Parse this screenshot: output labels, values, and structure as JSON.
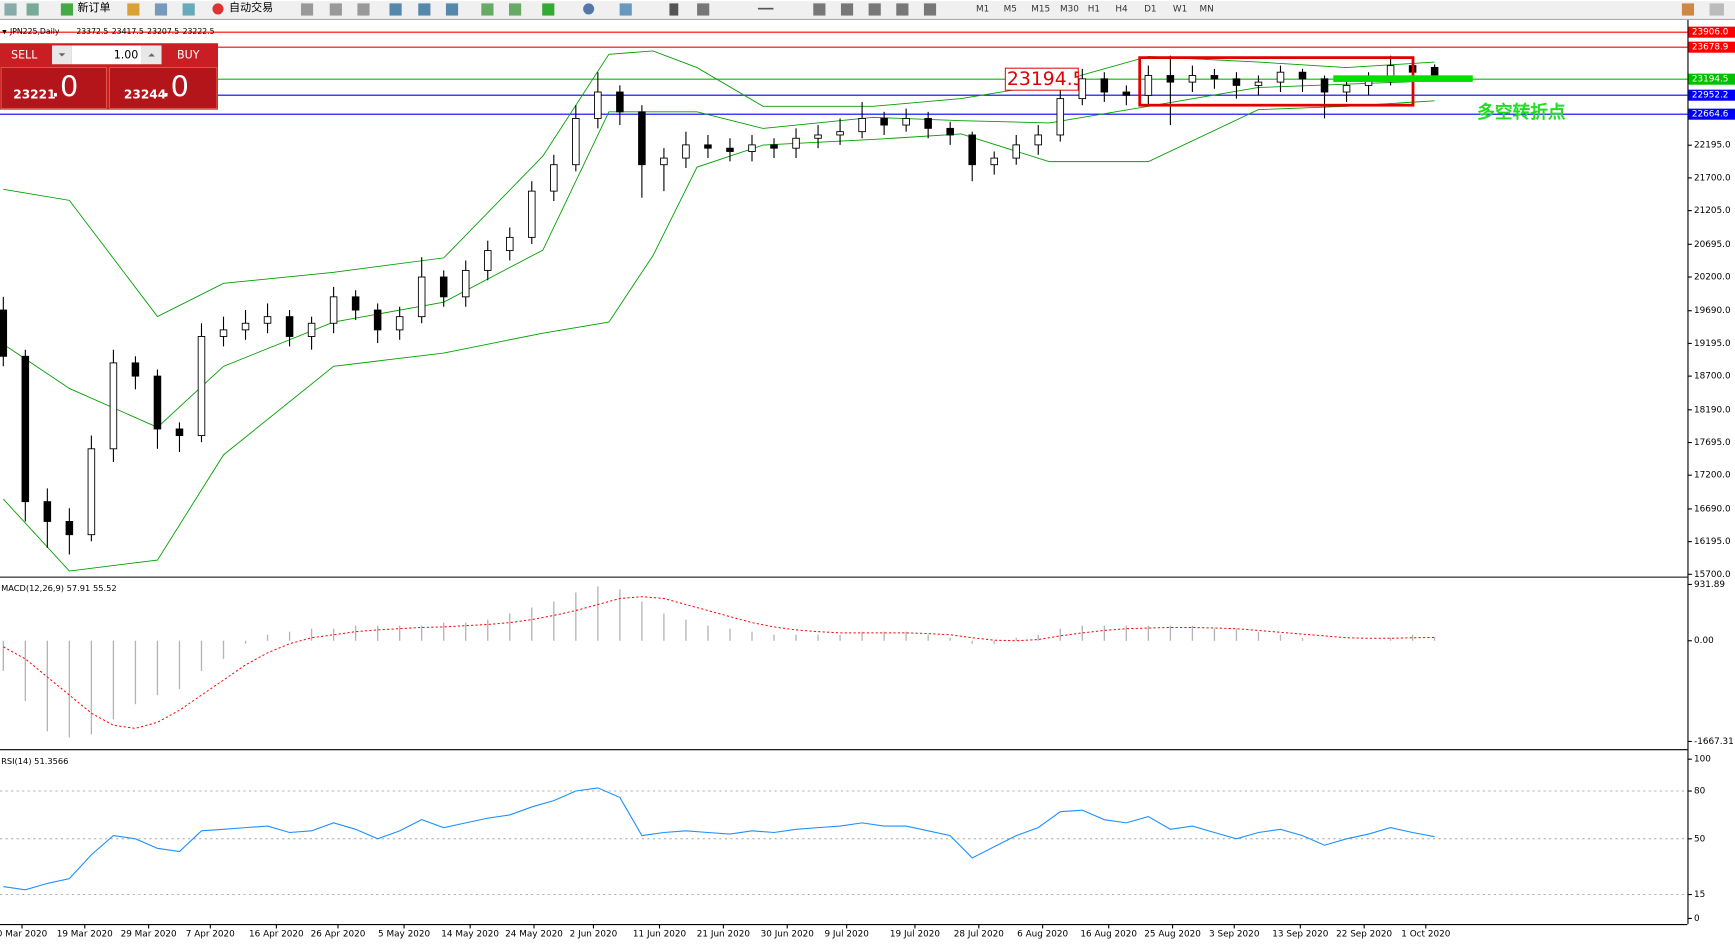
{
  "toolbar": {
    "buttons": [
      "新订单",
      "自动交易"
    ],
    "timeframes": [
      "M1",
      "M5",
      "M15",
      "M30",
      "H1",
      "H4",
      "D1",
      "W1",
      "MN"
    ]
  },
  "trade_panel": {
    "sell": "SELL",
    "buy": "BUY",
    "volume": "1.00",
    "sell_price": "23221",
    "sell_pips": ".0",
    "buy_price": "23244",
    "buy_pips": ".0"
  },
  "annotations": {
    "price_box": "23194.5",
    "note": "多空转折点"
  },
  "chart_data": [
    {
      "type": "candlestick",
      "title": "JPN225,Daily",
      "xlim": [
        -0.15,
        76.48
      ],
      "ylim": [
        15666,
        24040
      ],
      "open": [
        19700,
        19000,
        16800,
        16500,
        16300,
        17600,
        18900,
        18700,
        17900,
        17800,
        19300,
        19400,
        19500,
        19600,
        19300,
        19500,
        19900,
        19700,
        19400,
        19600,
        20200,
        19900,
        20300,
        20600,
        20800,
        21500,
        21900,
        22600,
        23000,
        22700,
        21900,
        22000,
        22200,
        22150,
        22100,
        22200,
        22150,
        22300,
        22350,
        22400,
        22600,
        22500,
        22600,
        22450,
        22350,
        21900,
        22000,
        22200,
        22350,
        22900,
        23200,
        23000,
        22950,
        23250,
        23150,
        23250,
        23200,
        23100,
        23150,
        23300,
        23200,
        23000,
        23100,
        23200,
        23400,
        23372.5
      ],
      "high": [
        19900,
        19100,
        17000,
        16700,
        17800,
        19100,
        19000,
        18800,
        18000,
        19500,
        19600,
        19700,
        19800,
        19700,
        19600,
        20050,
        20000,
        19800,
        19750,
        20500,
        20300,
        20450,
        20750,
        20950,
        21650,
        22050,
        22800,
        23300,
        23100,
        22800,
        22150,
        22400,
        22350,
        22300,
        22350,
        22300,
        22450,
        22500,
        22600,
        22850,
        22700,
        22750,
        22700,
        22550,
        22400,
        22100,
        22350,
        22500,
        23050,
        23350,
        23300,
        23100,
        23400,
        23550,
        23400,
        23350,
        23300,
        23250,
        23400,
        23350,
        23250,
        23200,
        23300,
        23550,
        23500,
        23417.5
      ],
      "low": [
        18850,
        16500,
        16100,
        16000,
        16200,
        17400,
        18500,
        17600,
        17550,
        17700,
        19150,
        19250,
        19350,
        19150,
        19100,
        19350,
        19550,
        19200,
        19250,
        19500,
        19750,
        19750,
        20150,
        20450,
        20700,
        21350,
        21800,
        22450,
        22500,
        21400,
        21500,
        21850,
        22000,
        21950,
        21950,
        22000,
        22000,
        22150,
        22200,
        22300,
        22350,
        22400,
        22300,
        22200,
        21650,
        21750,
        21900,
        22050,
        22250,
        22800,
        22850,
        22800,
        22800,
        22500,
        23000,
        23050,
        22900,
        22950,
        23000,
        23000,
        22600,
        22850,
        22950,
        23100,
        23200,
        23207.5
      ],
      "close": [
        19000,
        16800,
        16500,
        16300,
        17600,
        18900,
        18700,
        17900,
        17800,
        19300,
        19400,
        19500,
        19600,
        19300,
        19500,
        19900,
        19700,
        19400,
        19600,
        20200,
        19900,
        20300,
        20600,
        20800,
        21500,
        21900,
        22600,
        23000,
        22700,
        21900,
        22000,
        22200,
        22150,
        22100,
        22200,
        22150,
        22300,
        22350,
        22400,
        22600,
        22500,
        22600,
        22450,
        22350,
        21900,
        22000,
        22200,
        22350,
        22900,
        23200,
        23000,
        22950,
        23250,
        23150,
        23250,
        23200,
        23100,
        23150,
        23300,
        23200,
        23000,
        23100,
        23200,
        23400,
        23300,
        23222.5
      ],
      "bands": {
        "color": "#00a000",
        "x": [
          0,
          3,
          7,
          10,
          15,
          20,
          24.5,
          27.5,
          29.5,
          31.5,
          34.5,
          39.5,
          43.5,
          47.5,
          52,
          57,
          61,
          65
        ],
        "upper": [
          21528,
          21360,
          19601,
          20104,
          20271,
          20489,
          22030,
          23571,
          23621,
          23370,
          22784,
          22784,
          22901,
          23119,
          23537,
          23454,
          23370,
          23454
        ],
        "middle": [
          19183,
          18513,
          17926,
          18848,
          19518,
          19819,
          20606,
          22700,
          22700,
          22700,
          22449,
          22616,
          22566,
          22533,
          22784,
          23069,
          23119,
          23169
        ],
        "lower": [
          16838,
          15749,
          15916,
          17508,
          18848,
          19049,
          19350,
          19518,
          20523,
          21862,
          22198,
          22281,
          22365,
          21946,
          21946,
          22734,
          22784,
          22868
        ]
      },
      "levels": [
        {
          "value": 23906,
          "label": "23906.0",
          "color": "#ff0000"
        },
        {
          "value": 23678.9,
          "label": "23678.9",
          "color": "#ff0000"
        },
        {
          "value": 23194.5,
          "label": "23194.5",
          "color": "#00c000"
        },
        {
          "value": 22952.2,
          "label": "22952.2",
          "color": "#0000ff"
        },
        {
          "value": 22664.6,
          "label": "22664.6",
          "color": "#0000ff"
        }
      ],
      "yticks": [
        {
          "value": 22195,
          "label": "22195.0"
        },
        {
          "value": 21700,
          "label": "21700.0"
        },
        {
          "value": 21205,
          "label": "21205.0"
        },
        {
          "value": 20695,
          "label": "20695.0"
        },
        {
          "value": 20200,
          "label": "20200.0"
        },
        {
          "value": 19690,
          "label": "19690.0"
        },
        {
          "value": 19195,
          "label": "19195.0"
        },
        {
          "value": 18700,
          "label": "18700.0"
        },
        {
          "value": 18190,
          "label": "18190.0"
        },
        {
          "value": 17695,
          "label": "17695.0"
        },
        {
          "value": 17200,
          "label": "17200.0"
        },
        {
          "value": 16690,
          "label": "16690.0"
        },
        {
          "value": 16195,
          "label": "16195.0"
        },
        {
          "value": 15700,
          "label": "15700.0"
        }
      ],
      "xticks": [
        {
          "value": 0.85,
          "label": "0 Mar 2020"
        },
        {
          "value": 3.7,
          "label": "19 Mar 2020"
        },
        {
          "value": 6.6,
          "label": "29 Mar 2020"
        },
        {
          "value": 9.4,
          "label": "7 Apr 2020"
        },
        {
          "value": 12.4,
          "label": "16 Apr 2020"
        },
        {
          "value": 15.2,
          "label": "26 Apr 2020"
        },
        {
          "value": 18.2,
          "label": "5 May 2020"
        },
        {
          "value": 21.2,
          "label": "14 May 2020"
        },
        {
          "value": 24.1,
          "label": "24 May 2020"
        },
        {
          "value": 26.8,
          "label": "2 Jun 2020"
        },
        {
          "value": 29.8,
          "label": "11 Jun 2020"
        },
        {
          "value": 32.7,
          "label": "21 Jun 2020"
        },
        {
          "value": 35.6,
          "label": "30 Jun 2020"
        },
        {
          "value": 38.3,
          "label": "9 Jul 2020"
        },
        {
          "value": 41.4,
          "label": "19 Jul 2020"
        },
        {
          "value": 44.3,
          "label": "28 Jul 2020"
        },
        {
          "value": 47.2,
          "label": "6 Aug 2020"
        },
        {
          "value": 50.2,
          "label": "16 Aug 2020"
        },
        {
          "value": 53.1,
          "label": "25 Aug 2020"
        },
        {
          "value": 55.9,
          "label": "3 Sep 2020"
        },
        {
          "value": 58.9,
          "label": "13 Sep 2020"
        },
        {
          "value": 61.8,
          "label": "22 Sep 2020"
        },
        {
          "value": 64.6,
          "label": "1 Oct 2020"
        }
      ]
    },
    {
      "type": "macd",
      "title": "MACD(12,26,9) 57.91 55.52",
      "ylim": [
        -1795,
        1026
      ],
      "yticks": [
        931.89,
        {
          "value": 0,
          "label": "0.00"
        },
        -1667.31
      ],
      "series": [
        {
          "name": "MACD",
          "color": "#b4b4b4",
          "values": [
            -500,
            -1000,
            -1500,
            -1600,
            -1550,
            -1300,
            -1050,
            -900,
            -800,
            -500,
            -300,
            -50,
            100,
            150,
            200,
            200,
            250,
            250,
            250,
            250,
            300,
            300,
            350,
            450,
            550,
            650,
            800,
            900,
            850,
            650,
            450,
            350,
            250,
            200,
            150,
            100,
            100,
            100,
            100,
            150,
            150,
            150,
            100,
            50,
            -50,
            -50,
            50,
            100,
            200,
            250,
            250,
            250,
            250,
            250,
            250,
            200,
            200,
            150,
            100,
            50,
            0,
            0,
            0,
            50,
            100,
            57.91
          ]
        },
        {
          "name": "Signal",
          "color": "#ff0000",
          "values": [
            -100,
            -300,
            -600,
            -900,
            -1200,
            -1400,
            -1450,
            -1350,
            -1150,
            -900,
            -650,
            -400,
            -200,
            -50,
            50,
            100,
            150,
            180,
            200,
            220,
            230,
            250,
            270,
            300,
            350,
            420,
            500,
            600,
            700,
            730,
            700,
            600,
            500,
            400,
            300,
            230,
            180,
            150,
            130,
            130,
            130,
            130,
            120,
            100,
            50,
            10,
            0,
            20,
            80,
            130,
            170,
            200,
            210,
            220,
            220,
            210,
            200,
            170,
            140,
            110,
            80,
            50,
            40,
            40,
            50,
            55.52
          ]
        }
      ]
    },
    {
      "type": "rsi",
      "title": "RSI(14) 51.3566",
      "ylim": [
        -3.5,
        104.9
      ],
      "yticks": [
        100,
        80,
        50,
        15,
        0
      ],
      "color": "#1e90ff",
      "values": [
        20,
        18,
        22,
        25,
        40,
        52,
        50,
        44,
        42,
        55,
        56,
        57,
        58,
        54,
        55,
        60,
        56,
        50,
        55,
        62,
        57,
        60,
        63,
        65,
        70,
        74,
        80,
        82,
        76,
        52,
        54,
        55,
        54,
        53,
        55,
        54,
        56,
        57,
        58,
        60,
        58,
        58,
        55,
        52,
        38,
        45,
        52,
        57,
        67,
        68,
        62,
        60,
        64,
        56,
        58,
        54,
        50,
        54,
        56,
        52,
        46,
        50,
        53,
        57,
        54,
        51.3566
      ]
    }
  ]
}
